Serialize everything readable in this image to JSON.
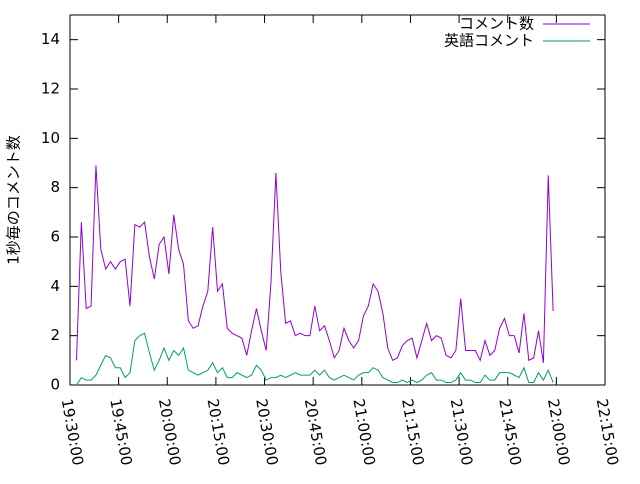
{
  "chart_data": {
    "type": "line",
    "ylabel": "1秒毎のコメント数",
    "x": [
      "19:32:00",
      "19:33:30",
      "19:35:00",
      "19:36:30",
      "19:38:00",
      "19:39:30",
      "19:41:00",
      "19:42:30",
      "19:44:00",
      "19:45:30",
      "19:47:00",
      "19:48:30",
      "19:50:00",
      "19:51:30",
      "19:53:00",
      "19:54:30",
      "19:56:00",
      "19:57:30",
      "19:59:00",
      "20:00:30",
      "20:02:00",
      "20:03:30",
      "20:05:00",
      "20:06:30",
      "20:08:00",
      "20:09:30",
      "20:11:00",
      "20:12:30",
      "20:14:00",
      "20:15:30",
      "20:17:00",
      "20:18:30",
      "20:20:00",
      "20:21:30",
      "20:23:00",
      "20:24:30",
      "20:26:00",
      "20:27:30",
      "20:29:00",
      "20:30:30",
      "20:32:00",
      "20:33:30",
      "20:35:00",
      "20:36:30",
      "20:38:00",
      "20:39:30",
      "20:41:00",
      "20:42:30",
      "20:44:00",
      "20:45:30",
      "20:47:00",
      "20:48:30",
      "20:50:00",
      "20:51:30",
      "20:53:00",
      "20:54:30",
      "20:56:00",
      "20:57:30",
      "20:59:00",
      "21:00:30",
      "21:02:00",
      "21:03:30",
      "21:05:00",
      "21:06:30",
      "21:08:00",
      "21:09:30",
      "21:11:00",
      "21:12:30",
      "21:14:00",
      "21:15:30",
      "21:17:00",
      "21:18:30",
      "21:20:00",
      "21:21:30",
      "21:23:00",
      "21:24:30",
      "21:26:00",
      "21:27:30",
      "21:29:00",
      "21:30:30",
      "21:32:00",
      "21:33:30",
      "21:35:00",
      "21:36:30",
      "21:38:00",
      "21:39:30",
      "21:41:00",
      "21:42:30",
      "21:44:00",
      "21:45:30",
      "21:47:00",
      "21:48:30",
      "21:50:00",
      "21:51:30",
      "21:53:00",
      "21:54:30",
      "21:56:00",
      "21:57:30",
      "21:59:00"
    ],
    "series": [
      {
        "name": "コメント数",
        "color": "#9400d3",
        "values": [
          1.0,
          6.6,
          3.1,
          3.2,
          8.9,
          5.5,
          4.7,
          5.0,
          4.7,
          5.0,
          5.1,
          3.2,
          6.5,
          6.4,
          6.6,
          5.2,
          4.3,
          5.7,
          6.0,
          4.5,
          6.9,
          5.5,
          4.9,
          2.6,
          2.3,
          2.4,
          3.2,
          3.8,
          6.4,
          3.8,
          4.1,
          2.3,
          2.1,
          2.0,
          1.9,
          1.2,
          2.2,
          3.1,
          2.2,
          1.4,
          4.2,
          8.6,
          4.6,
          2.5,
          2.6,
          2.0,
          2.1,
          2.0,
          2.0,
          3.2,
          2.2,
          2.4,
          1.8,
          1.1,
          1.4,
          2.3,
          1.8,
          1.5,
          1.8,
          2.8,
          3.2,
          4.1,
          3.8,
          2.9,
          1.5,
          1.0,
          1.1,
          1.6,
          1.8,
          1.9,
          1.1,
          1.8,
          2.5,
          1.8,
          2.0,
          1.9,
          1.2,
          1.1,
          1.4,
          3.5,
          1.4,
          1.4,
          1.4,
          1.0,
          1.8,
          1.2,
          1.4,
          2.3,
          2.7,
          2.0,
          2.0,
          1.3,
          2.9,
          1.0,
          1.1,
          2.2,
          0.9,
          8.5,
          3.0
        ]
      },
      {
        "name": "英語コメント",
        "color": "#009e73",
        "values": [
          0,
          0.3,
          0.2,
          0.2,
          0.4,
          0.8,
          1.2,
          1.1,
          0.7,
          0.7,
          0.3,
          0.5,
          1.8,
          2.0,
          2.1,
          1.3,
          0.6,
          1.0,
          1.5,
          1.0,
          1.4,
          1.2,
          1.5,
          0.6,
          0.5,
          0.4,
          0.5,
          0.6,
          0.9,
          0.5,
          0.7,
          0.3,
          0.3,
          0.5,
          0.4,
          0.3,
          0.4,
          0.8,
          0.6,
          0.2,
          0.3,
          0.3,
          0.4,
          0.3,
          0.4,
          0.5,
          0.4,
          0.4,
          0.4,
          0.6,
          0.4,
          0.6,
          0.3,
          0.2,
          0.3,
          0.4,
          0.3,
          0.2,
          0.4,
          0.5,
          0.5,
          0.7,
          0.6,
          0.3,
          0.2,
          0.1,
          0.1,
          0.2,
          0.1,
          0.2,
          0.1,
          0.2,
          0.4,
          0.5,
          0.2,
          0.2,
          0.1,
          0.1,
          0.2,
          0.5,
          0.2,
          0.2,
          0.1,
          0.1,
          0.4,
          0.2,
          0.2,
          0.5,
          0.5,
          0.5,
          0.4,
          0.3,
          0.7,
          0.1,
          0.1,
          0.5,
          0.2,
          0.6,
          0.1
        ]
      }
    ],
    "xlim": [
      "19:30:00",
      "22:15:00"
    ],
    "xticks": [
      "19:30:00",
      "19:45:00",
      "20:00:00",
      "20:15:00",
      "20:30:00",
      "20:45:00",
      "21:00:00",
      "21:15:00",
      "21:30:00",
      "21:45:00",
      "22:00:00",
      "22:15:00"
    ],
    "ylim": [
      0,
      15
    ],
    "yticks": [
      0,
      2,
      4,
      6,
      8,
      10,
      12,
      14
    ],
    "legend": "top-right",
    "grid": false
  }
}
